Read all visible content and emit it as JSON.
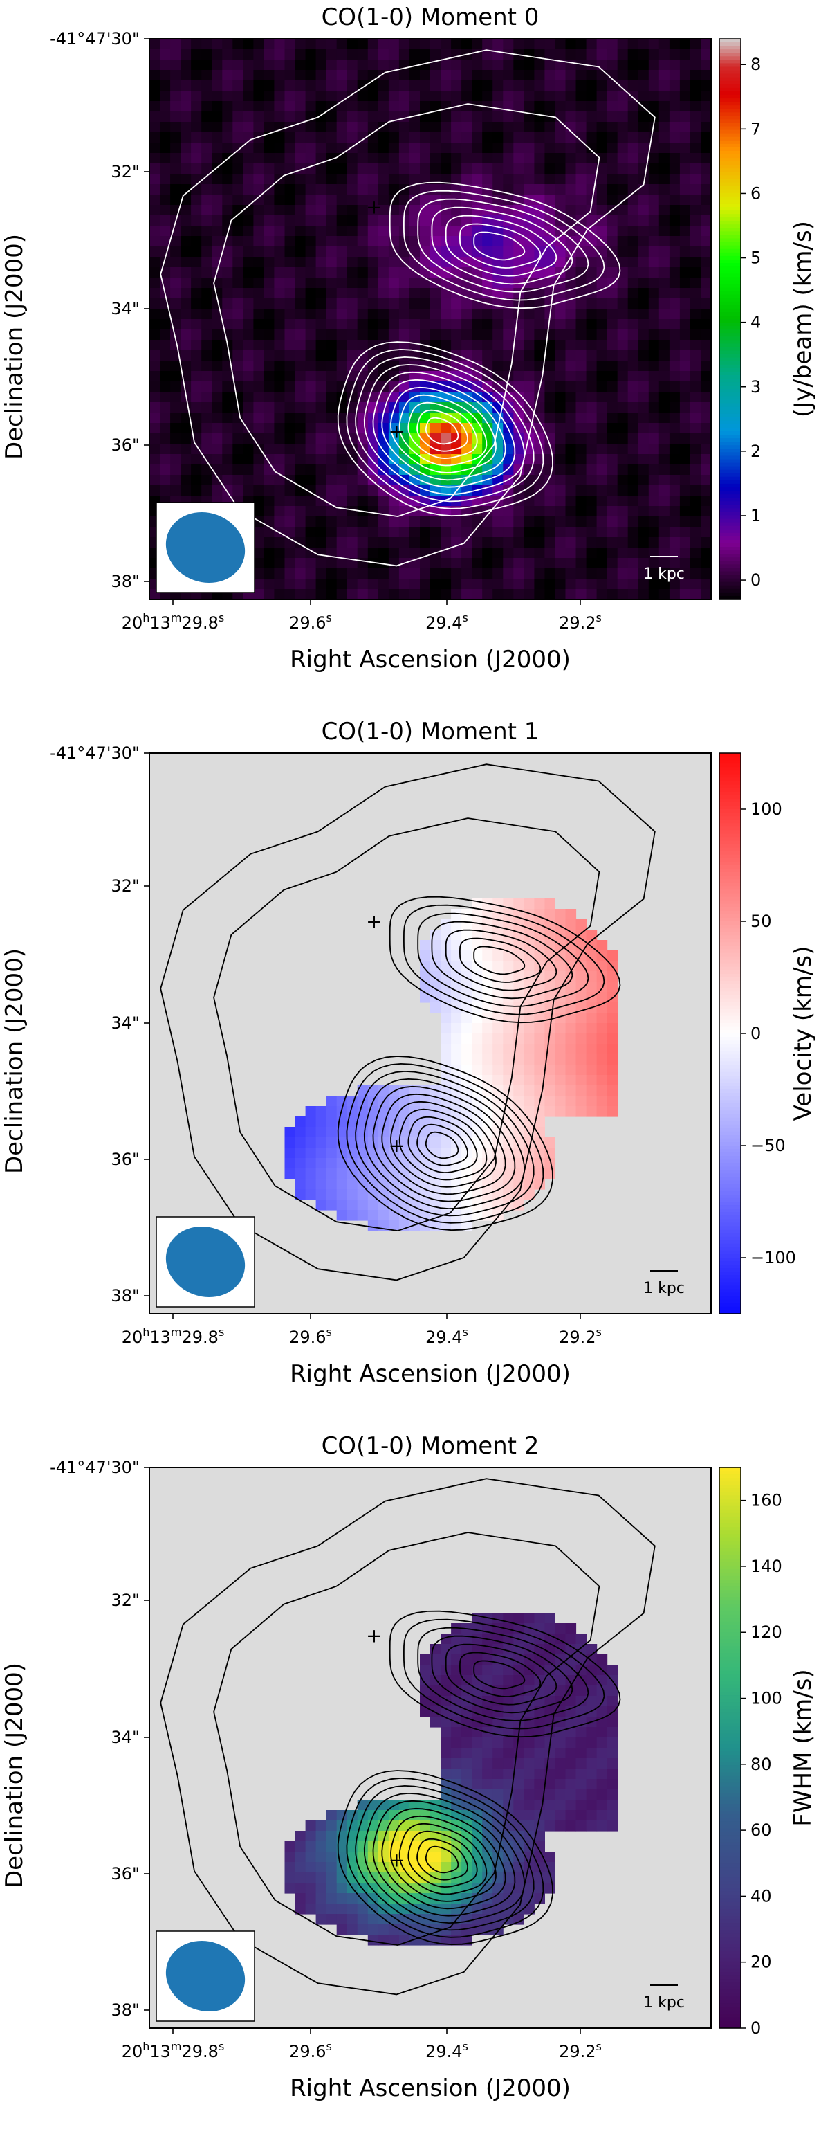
{
  "chart_data": [
    {
      "type": "heatmap",
      "title": "CO(1-0) Moment 0",
      "xlabel": "Right Ascension (J2000)",
      "ylabel": "Declination (J2000)",
      "x_ticks": [
        {
          "main": "20",
          "h": "h",
          "m": "13",
          "mm": "m",
          "s": "29.8",
          "ss": "s"
        },
        {
          "main": "29.6",
          "s": "s"
        },
        {
          "main": "29.4",
          "s": "s"
        },
        {
          "main": "29.2",
          "s": "s"
        }
      ],
      "y_ticks": [
        "-41°47'30\"",
        "32\"",
        "34\"",
        "36\"",
        "38\""
      ],
      "colorbar": {
        "label": "(Jy/beam) (km/s)",
        "min": -0.3,
        "max": 8.4,
        "ticks": [
          0,
          1,
          2,
          3,
          4,
          5,
          6,
          7,
          8
        ],
        "colormap": "nipy_spectral"
      },
      "scalebar_label": "1 kpc",
      "marker_symbol": "+",
      "contour_color": "#ffffff",
      "marker_color": "#ffffff",
      "background": "#6a0b7a",
      "source_peak_values": {
        "south": 8.2,
        "north": 1.0
      }
    },
    {
      "type": "heatmap",
      "title": "CO(1-0) Moment 1",
      "xlabel": "Right Ascension (J2000)",
      "ylabel": "Declination (J2000)",
      "x_ticks": [
        {
          "main": "20",
          "h": "h",
          "m": "13",
          "mm": "m",
          "s": "29.8",
          "ss": "s"
        },
        {
          "main": "29.6",
          "s": "s"
        },
        {
          "main": "29.4",
          "s": "s"
        },
        {
          "main": "29.2",
          "s": "s"
        }
      ],
      "y_ticks": [
        "-41°47'30\"",
        "32\"",
        "34\"",
        "36\"",
        "38\""
      ],
      "colorbar": {
        "label": "Velocity (km/s)",
        "min": -125,
        "max": 125,
        "ticks": [
          -100,
          -50,
          0,
          50,
          100
        ],
        "colormap": "bwr"
      },
      "scalebar_label": "1 kpc",
      "marker_symbol": "+",
      "contour_color": "#000000",
      "marker_color": "#000000",
      "background": "#dcdcdc",
      "velocity_range": [
        -125,
        125
      ]
    },
    {
      "type": "heatmap",
      "title": "CO(1-0) Moment 2",
      "xlabel": "Right Ascension (J2000)",
      "ylabel": "Declination (J2000)",
      "x_ticks": [
        {
          "main": "20",
          "h": "h",
          "m": "13",
          "mm": "m",
          "s": "29.8",
          "ss": "s"
        },
        {
          "main": "29.6",
          "s": "s"
        },
        {
          "main": "29.4",
          "s": "s"
        },
        {
          "main": "29.2",
          "s": "s"
        }
      ],
      "y_ticks": [
        "-41°47'30\"",
        "32\"",
        "34\"",
        "36\"",
        "38\""
      ],
      "colorbar": {
        "label": "FWHM (km/s)",
        "min": 0,
        "max": 170,
        "ticks": [
          0,
          20,
          40,
          60,
          80,
          100,
          120,
          140,
          160
        ],
        "colormap": "viridis"
      },
      "scalebar_label": "1 kpc",
      "marker_symbol": "+",
      "contour_color": "#000000",
      "marker_color": "#ffffff",
      "background": "#dcdcdc",
      "fwhm_peak": 165
    }
  ],
  "colors": {
    "beam_fill": "#1f77b4",
    "axis": "#000000"
  }
}
